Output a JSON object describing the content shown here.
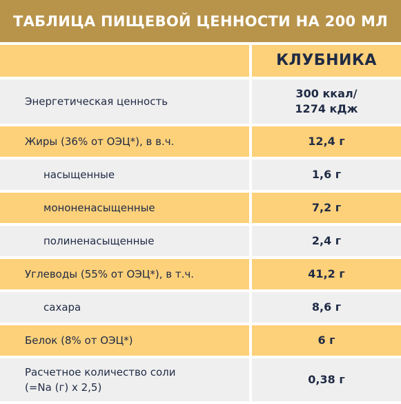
{
  "header": {
    "title": "ТАБЛИЦА ПИЩЕВОЙ ЦЕННОСТИ НА 200 МЛ"
  },
  "table": {
    "column_header": "КЛУБНИКА",
    "rows": [
      {
        "label": "Энергетическая ценность",
        "value_line1": "300 ккал/",
        "value_line2": "1274 кДж"
      },
      {
        "label": "Жиры (36% от ОЭЦ*), в в.ч.",
        "value": "12,4 г"
      },
      {
        "label": "насыщенные",
        "value": "1,6 г"
      },
      {
        "label": "мононенасыщенные",
        "value": "7,2 г"
      },
      {
        "label": "полиненасыщенные",
        "value": "2,4 г"
      },
      {
        "label": "Углеводы (55% от ОЭЦ*), в т.ч.",
        "value": "41,2 г"
      },
      {
        "label": "сахара",
        "value": "8,6 г"
      },
      {
        "label": "Белок (8% от ОЭЦ*)",
        "value": "6 г"
      },
      {
        "label_line1": "Расчетное количество соли",
        "label_line2": "(=Na (г) х 2,5)",
        "value": "0,38 г"
      }
    ]
  },
  "colors": {
    "header_bg": "#b8934a",
    "orange_row": "#fdd07a",
    "gray_row": "#efefef",
    "text": "#1f2a44"
  }
}
